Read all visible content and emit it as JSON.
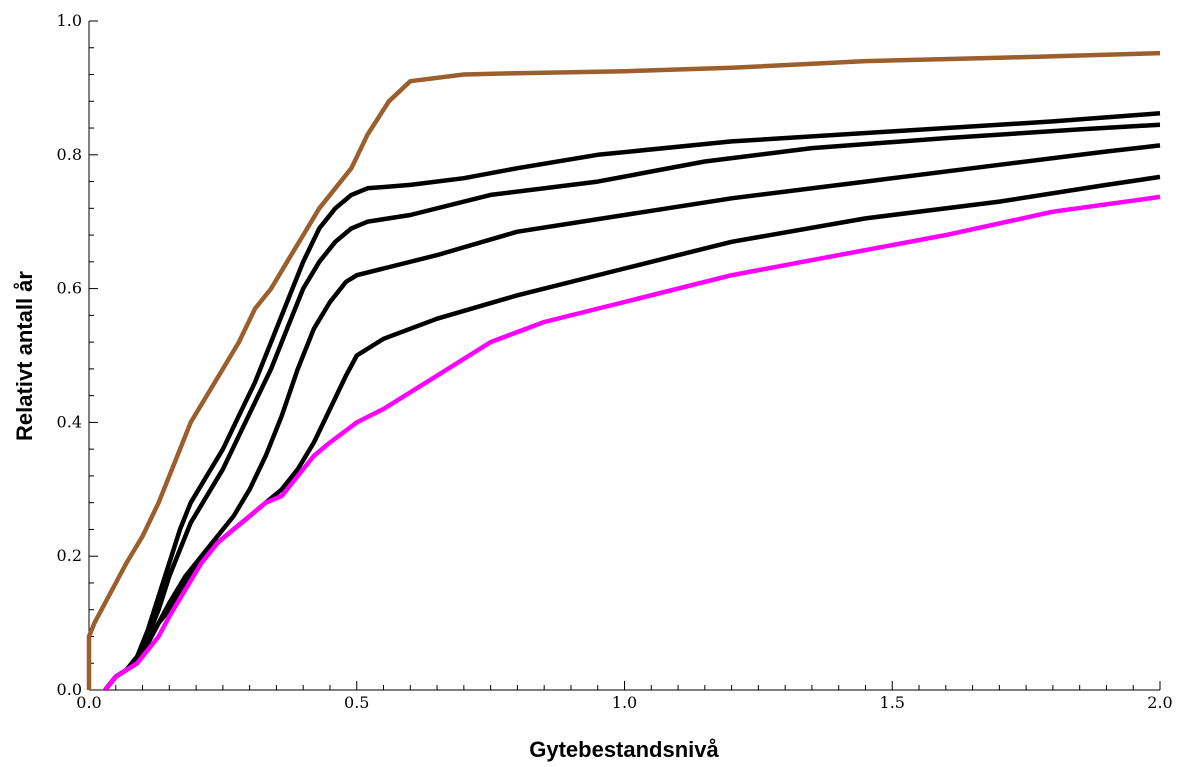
{
  "chart_data": {
    "type": "line",
    "title": "",
    "xlabel": "Gytebestandsnivå",
    "ylabel": "Relativt antall år",
    "xlim": [
      0.0,
      2.0
    ],
    "ylim": [
      0.0,
      1.0
    ],
    "xticks": [
      0.0,
      0.5,
      1.0,
      1.5,
      2.0
    ],
    "xtick_labels": [
      "0.0",
      "0.5",
      "1.0",
      "1.5",
      "2.0"
    ],
    "yticks": [
      0.0,
      0.2,
      0.4,
      0.6,
      0.8,
      1.0
    ],
    "ytick_labels": [
      "0.0",
      "0.2",
      "0.4",
      "0.6",
      "0.8",
      "1.0"
    ],
    "grid": false,
    "legend": "none",
    "series": [
      {
        "color": "#9B5F2E",
        "x": [
          0.0,
          0.0,
          0.01,
          0.03,
          0.05,
          0.07,
          0.1,
          0.13,
          0.16,
          0.19,
          0.22,
          0.25,
          0.28,
          0.31,
          0.34,
          0.37,
          0.4,
          0.43,
          0.46,
          0.49,
          0.52,
          0.56,
          0.6,
          0.7,
          0.8,
          1.0,
          1.2,
          1.45,
          1.7,
          2.0
        ],
        "y": [
          0.0,
          0.08,
          0.1,
          0.13,
          0.16,
          0.19,
          0.23,
          0.28,
          0.34,
          0.4,
          0.44,
          0.48,
          0.52,
          0.57,
          0.6,
          0.64,
          0.68,
          0.72,
          0.75,
          0.78,
          0.83,
          0.88,
          0.91,
          0.92,
          0.922,
          0.925,
          0.93,
          0.94,
          0.945,
          0.952
        ]
      },
      {
        "color": "#000000",
        "x": [
          0.03,
          0.05,
          0.07,
          0.09,
          0.11,
          0.13,
          0.15,
          0.17,
          0.19,
          0.22,
          0.25,
          0.28,
          0.31,
          0.34,
          0.37,
          0.4,
          0.43,
          0.46,
          0.49,
          0.52,
          0.6,
          0.7,
          0.8,
          0.95,
          1.2,
          1.5,
          1.8,
          2.0
        ],
        "y": [
          0.0,
          0.02,
          0.03,
          0.05,
          0.09,
          0.14,
          0.19,
          0.24,
          0.28,
          0.32,
          0.36,
          0.41,
          0.46,
          0.52,
          0.58,
          0.64,
          0.69,
          0.72,
          0.74,
          0.75,
          0.755,
          0.765,
          0.78,
          0.8,
          0.82,
          0.835,
          0.85,
          0.862
        ]
      },
      {
        "color": "#000000",
        "x": [
          0.03,
          0.05,
          0.07,
          0.09,
          0.11,
          0.13,
          0.15,
          0.17,
          0.19,
          0.22,
          0.25,
          0.28,
          0.31,
          0.34,
          0.37,
          0.4,
          0.43,
          0.46,
          0.49,
          0.52,
          0.6,
          0.75,
          0.95,
          1.15,
          1.35,
          1.6,
          1.85,
          2.0
        ],
        "y": [
          0.0,
          0.02,
          0.03,
          0.05,
          0.08,
          0.12,
          0.17,
          0.21,
          0.25,
          0.29,
          0.33,
          0.38,
          0.43,
          0.48,
          0.54,
          0.6,
          0.64,
          0.67,
          0.69,
          0.7,
          0.71,
          0.74,
          0.76,
          0.79,
          0.81,
          0.825,
          0.838,
          0.845
        ]
      },
      {
        "color": "#000000",
        "x": [
          0.03,
          0.05,
          0.07,
          0.09,
          0.11,
          0.13,
          0.15,
          0.18,
          0.21,
          0.24,
          0.27,
          0.3,
          0.33,
          0.36,
          0.39,
          0.42,
          0.45,
          0.48,
          0.5,
          0.55,
          0.65,
          0.8,
          1.0,
          1.2,
          1.45,
          1.7,
          1.9,
          2.0
        ],
        "y": [
          0.0,
          0.02,
          0.03,
          0.04,
          0.07,
          0.1,
          0.13,
          0.17,
          0.2,
          0.23,
          0.26,
          0.3,
          0.35,
          0.41,
          0.48,
          0.54,
          0.58,
          0.61,
          0.62,
          0.63,
          0.65,
          0.685,
          0.71,
          0.735,
          0.76,
          0.785,
          0.805,
          0.814
        ]
      },
      {
        "color": "#000000",
        "x": [
          0.03,
          0.05,
          0.07,
          0.09,
          0.11,
          0.13,
          0.15,
          0.18,
          0.21,
          0.24,
          0.27,
          0.3,
          0.33,
          0.36,
          0.39,
          0.42,
          0.45,
          0.48,
          0.5,
          0.55,
          0.65,
          0.8,
          1.0,
          1.2,
          1.45,
          1.7,
          1.9,
          2.0
        ],
        "y": [
          0.0,
          0.02,
          0.03,
          0.04,
          0.07,
          0.1,
          0.12,
          0.16,
          0.19,
          0.22,
          0.24,
          0.26,
          0.28,
          0.3,
          0.33,
          0.37,
          0.42,
          0.47,
          0.5,
          0.525,
          0.555,
          0.59,
          0.63,
          0.67,
          0.705,
          0.73,
          0.755,
          0.767
        ]
      },
      {
        "color": "#FF00FF",
        "x": [
          0.03,
          0.05,
          0.07,
          0.09,
          0.11,
          0.13,
          0.15,
          0.18,
          0.21,
          0.24,
          0.27,
          0.3,
          0.33,
          0.36,
          0.39,
          0.42,
          0.45,
          0.5,
          0.55,
          0.65,
          0.75,
          0.85,
          1.0,
          1.2,
          1.4,
          1.6,
          1.8,
          2.0
        ],
        "y": [
          0.0,
          0.02,
          0.03,
          0.04,
          0.06,
          0.08,
          0.11,
          0.15,
          0.19,
          0.22,
          0.24,
          0.26,
          0.28,
          0.29,
          0.32,
          0.35,
          0.37,
          0.4,
          0.42,
          0.47,
          0.52,
          0.55,
          0.58,
          0.62,
          0.65,
          0.68,
          0.715,
          0.737
        ]
      }
    ]
  }
}
